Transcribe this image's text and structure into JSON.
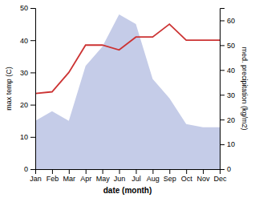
{
  "chart_data": {
    "type": "line",
    "xlabel": "date (month)",
    "ylabel": "max temp (C)",
    "y2label": "med. precipitation (kg/m2)",
    "categories": [
      "Jan",
      "Feb",
      "Mar",
      "Apr",
      "May",
      "Jun",
      "Jul",
      "Aug",
      "Sep",
      "Oct",
      "Nov",
      "Dec"
    ],
    "series": [
      {
        "type": "area",
        "color": "#c5cce8",
        "values": [
          15,
          18,
          15,
          32,
          38,
          48,
          45,
          28,
          22,
          14,
          13,
          13
        ]
      },
      {
        "type": "line",
        "color": "#cc3333",
        "values": [
          23.5,
          24,
          30,
          38.5,
          38.5,
          37,
          41,
          41,
          45,
          40,
          40,
          40
        ]
      }
    ],
    "ylim": [
      0,
      50
    ],
    "yticks": [
      0,
      10,
      20,
      30,
      40,
      50
    ],
    "y2lim": [
      0,
      65
    ],
    "y2ticks": [
      0,
      10,
      20,
      30,
      40,
      50,
      60
    ],
    "grid": false
  }
}
